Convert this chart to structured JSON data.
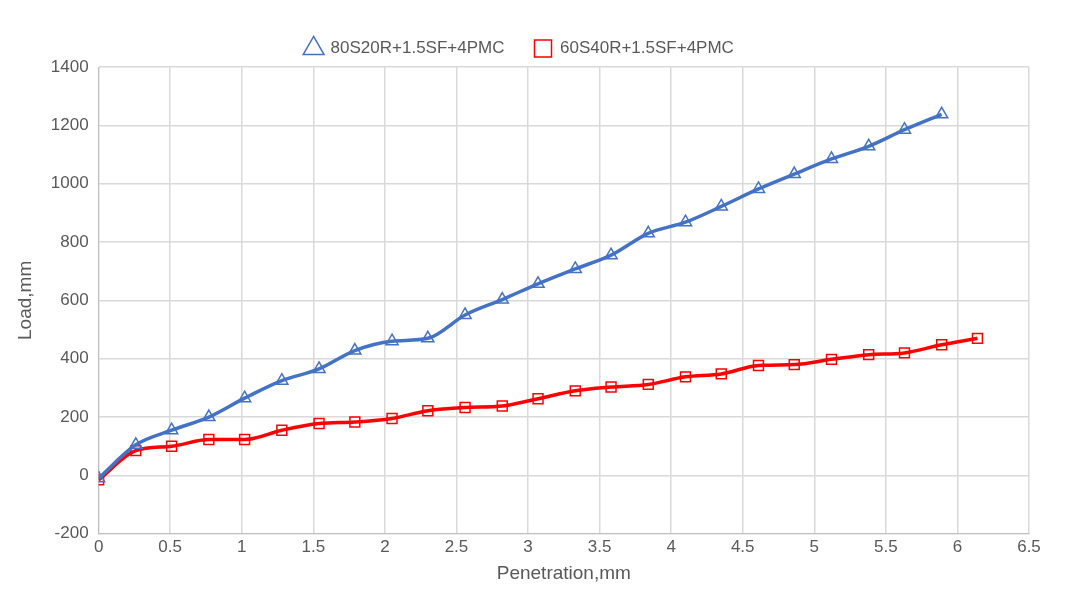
{
  "chart_data": {
    "type": "line",
    "xlabel": "Penetration,mm",
    "ylabel": "Load,mm",
    "xlim": [
      0,
      6.5
    ],
    "xticks": [
      0,
      0.5,
      1,
      1.5,
      2,
      2.5,
      3,
      3.5,
      4,
      4.5,
      5,
      5.5,
      6,
      6.5
    ],
    "ylim": [
      -200,
      1400
    ],
    "yticks": [
      -200,
      0,
      200,
      400,
      600,
      800,
      1000,
      1200,
      1400
    ],
    "grid": true,
    "legend": "top",
    "line_style": "solid",
    "x": [
      0,
      0.26,
      0.51,
      0.77,
      1.02,
      1.28,
      1.54,
      1.79,
      2.05,
      2.3,
      2.56,
      2.82,
      3.07,
      3.33,
      3.58,
      3.84,
      4.1,
      4.35,
      4.61,
      4.86,
      5.12,
      5.38,
      5.63,
      5.89,
      6.14
    ],
    "series": [
      {
        "name": "80S20R+1.5SF+4PMC",
        "color": "#4472c4",
        "marker": "triangle",
        "values": [
          -10,
          105,
          155,
          200,
          265,
          325,
          365,
          428,
          460,
          470,
          550,
          603,
          657,
          708,
          755,
          830,
          868,
          922,
          982,
          1033,
          1085,
          1128,
          1185,
          1238,
          null
        ]
      },
      {
        "name": "60S40R+1.5SF+4PMC",
        "color": "#ff0000",
        "marker": "square",
        "values": [
          -15,
          85,
          100,
          123,
          123,
          155,
          178,
          183,
          195,
          222,
          233,
          238,
          263,
          290,
          303,
          312,
          338,
          348,
          377,
          380,
          398,
          414,
          420,
          448,
          470
        ]
      }
    ]
  }
}
